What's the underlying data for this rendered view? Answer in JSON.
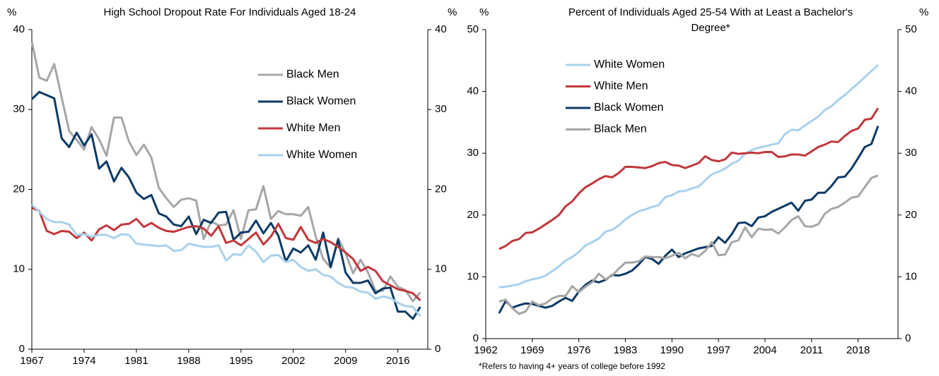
{
  "chart_data": [
    {
      "type": "line",
      "title": [
        "High School Dropout Rate For Individuals Aged 18-24"
      ],
      "y_label": "%",
      "y2_label": "%",
      "x": [
        1967,
        1968,
        1969,
        1970,
        1971,
        1972,
        1973,
        1974,
        1975,
        1976,
        1977,
        1978,
        1979,
        1980,
        1981,
        1982,
        1983,
        1984,
        1985,
        1986,
        1987,
        1988,
        1989,
        1990,
        1991,
        1992,
        1993,
        1994,
        1995,
        1996,
        1997,
        1998,
        1999,
        2000,
        2001,
        2002,
        2003,
        2004,
        2005,
        2006,
        2007,
        2008,
        2009,
        2010,
        2011,
        2012,
        2013,
        2014,
        2015,
        2016,
        2017,
        2018,
        2019
      ],
      "xlim": [
        1967,
        2020
      ],
      "xticks": [
        1967,
        1974,
        1981,
        1988,
        1995,
        2002,
        2009,
        2016
      ],
      "ylim": [
        0,
        40
      ],
      "yticks": [
        0,
        10,
        20,
        30,
        40
      ],
      "y2lim": [
        0,
        40
      ],
      "y2ticks": [
        0,
        10,
        20,
        30,
        40
      ],
      "series": [
        {
          "name": "Black Men",
          "color": "#a6a6a6",
          "values": [
            38.5,
            34,
            33.6,
            35.7,
            31.5,
            27.3,
            26.2,
            25,
            27.8,
            26.3,
            24.2,
            29,
            29,
            26,
            24.3,
            25.6,
            24,
            20.2,
            18.9,
            17.8,
            18.7,
            18.9,
            18.6,
            13.8,
            16,
            15.5,
            15.6,
            17.4,
            13.8,
            17.4,
            17.5,
            20.4,
            16.3,
            17.3,
            16.9,
            16.9,
            16.7,
            17.8,
            14.1,
            11.3,
            10.2,
            13.9,
            12,
            9.5,
            11.2,
            9.6,
            7.3,
            7.3,
            9.1,
            7.8,
            7.4,
            6,
            7.1
          ]
        },
        {
          "name": "Black Women",
          "color": "#0b3a66",
          "values": [
            31.3,
            32.2,
            31.8,
            31.4,
            26.4,
            25.3,
            27.1,
            25.5,
            26.9,
            22.6,
            23.5,
            21,
            22.7,
            21.5,
            19.6,
            18.8,
            19.3,
            17,
            16.6,
            15.6,
            15.4,
            16.6,
            14.4,
            16.2,
            15.8,
            17.1,
            17.2,
            13.7,
            14.6,
            14.7,
            16.1,
            14.5,
            15.8,
            14.2,
            11,
            12.6,
            12.1,
            13,
            11.2,
            14.6,
            10.3,
            13.7,
            9.6,
            8.3,
            8.3,
            8.6,
            7,
            7.6,
            7.7,
            4.7,
            4.7,
            3.8,
            5.3
          ]
        },
        {
          "name": "White Men",
          "color": "#c0373a",
          "values": [
            17.7,
            17.3,
            14.8,
            14.4,
            14.8,
            14.7,
            13.9,
            14.6,
            13.6,
            15,
            15.5,
            14.9,
            15.6,
            15.7,
            16.3,
            15.3,
            15.8,
            15.2,
            14.8,
            14.7,
            15,
            15.3,
            15.4,
            15.1,
            14.2,
            15.4,
            13.3,
            13.6,
            13,
            13.8,
            14.6,
            13.1,
            14.1,
            15.7,
            13.9,
            13.7,
            15.3,
            13.7,
            13.3,
            13.8,
            13.4,
            12.8,
            12.1,
            11.3,
            9.8,
            10.3,
            9.8,
            8.5,
            8,
            7.5,
            7.3,
            7,
            6.1
          ]
        },
        {
          "name": "White Women",
          "color": "#a9d1ee",
          "values": [
            18.1,
            17.2,
            16.3,
            15.9,
            15.9,
            15.6,
            14.3,
            14.4,
            14.1,
            14.3,
            14.3,
            13.9,
            14.4,
            14.3,
            13.2,
            13.1,
            13,
            12.9,
            13,
            12.3,
            12.4,
            13.2,
            13,
            12.8,
            12.8,
            13,
            11.1,
            11.9,
            11.8,
            13,
            12.2,
            10.9,
            11.7,
            11.8,
            10.9,
            11.2,
            10.3,
            9.8,
            10,
            9.3,
            9.1,
            8.3,
            7.8,
            7.7,
            7.2,
            7.1,
            6.3,
            6.6,
            6.4,
            5.8,
            5.4,
            5.3,
            4.1
          ]
        }
      ]
    },
    {
      "type": "line",
      "title": [
        "Percent of Individuals Aged 25-54 With at Least a Bachelor's",
        "Degree*"
      ],
      "y_label": "%",
      "y2_label": "%",
      "note": "*Refers to having 4+ years of college before 1992",
      "x": [
        1964,
        1965,
        1966,
        1967,
        1968,
        1969,
        1970,
        1971,
        1972,
        1973,
        1974,
        1975,
        1976,
        1977,
        1978,
        1979,
        1980,
        1981,
        1982,
        1983,
        1984,
        1985,
        1986,
        1987,
        1988,
        1989,
        1990,
        1991,
        1992,
        1993,
        1994,
        1995,
        1996,
        1997,
        1998,
        1999,
        2000,
        2001,
        2002,
        2003,
        2004,
        2005,
        2006,
        2007,
        2008,
        2009,
        2010,
        2011,
        2012,
        2013,
        2014,
        2015,
        2016,
        2017,
        2018,
        2019,
        2020,
        2021
      ],
      "xlim": [
        1962,
        2024
      ],
      "xticks": [
        1962,
        1969,
        1976,
        1983,
        1990,
        1997,
        2004,
        2011,
        2018
      ],
      "ylim": [
        0,
        50
      ],
      "yticks": [
        0,
        10,
        20,
        30,
        40,
        50
      ],
      "y2lim": [
        0,
        50
      ],
      "y2ticks": [
        0,
        10,
        20,
        30,
        40,
        50
      ],
      "series": [
        {
          "name": "White Women",
          "color": "#a9d1ee",
          "values": [
            8.3,
            8.4,
            8.6,
            8.8,
            9.3,
            9.6,
            9.8,
            10.2,
            10.9,
            11.7,
            12.6,
            13.2,
            14,
            15.1,
            15.6,
            16.2,
            17.3,
            17.6,
            18.3,
            19.3,
            20,
            20.6,
            20.9,
            21.3,
            21.6,
            22.9,
            23.2,
            23.8,
            23.9,
            24.3,
            24.6,
            25.6,
            26.6,
            27,
            27.5,
            28.3,
            28.8,
            29.9,
            30.5,
            30.9,
            31.1,
            31.4,
            31.6,
            33.1,
            33.8,
            33.7,
            34.5,
            35.2,
            35.9,
            37,
            37.6,
            38.6,
            39.4,
            40.4,
            41.3,
            42.3,
            43.3,
            44.3
          ]
        },
        {
          "name": "White Men",
          "color": "#c0373a",
          "values": [
            14.5,
            15,
            15.8,
            16.1,
            17.1,
            17.2,
            17.8,
            18.5,
            19.2,
            20,
            21.4,
            22.2,
            23.5,
            24.5,
            25.1,
            25.8,
            26.3,
            26.1,
            26.8,
            27.8,
            27.8,
            27.7,
            27.6,
            27.9,
            28.4,
            28.6,
            28.1,
            28,
            27.6,
            28,
            28.4,
            29.5,
            28.9,
            28.7,
            29,
            30.1,
            29.9,
            30,
            30.1,
            30,
            30.2,
            30.2,
            29.4,
            29.5,
            29.8,
            29.8,
            29.6,
            30.3,
            31,
            31.4,
            31.9,
            31.8,
            32.8,
            33.6,
            34,
            35.4,
            35.6,
            37.3
          ]
        },
        {
          "name": "Black Women",
          "color": "#0b3a66",
          "values": [
            4.1,
            6.1,
            5,
            5.4,
            5.7,
            5.6,
            5.3,
            5,
            5.3,
            6,
            6.6,
            6.1,
            7.6,
            8.7,
            9.4,
            9.1,
            9.5,
            10.3,
            10.2,
            10.5,
            11,
            12,
            13.2,
            12.9,
            12.1,
            13.4,
            14.4,
            13.2,
            13.8,
            14.2,
            14.6,
            14.8,
            15,
            16.4,
            15.5,
            16.9,
            18.7,
            18.8,
            18.2,
            19.6,
            19.8,
            20.5,
            21,
            21.5,
            22,
            20.7,
            22.3,
            22.5,
            23.6,
            23.6,
            24.7,
            26.1,
            26.2,
            27.5,
            29.2,
            31,
            31.5,
            34.4
          ]
        },
        {
          "name": "Black Men",
          "color": "#a6a6a6",
          "values": [
            6,
            6.3,
            4.9,
            4,
            4.4,
            6,
            5.4,
            5.7,
            6.5,
            6.9,
            6.9,
            8.5,
            7.5,
            8.4,
            9.1,
            10.5,
            9.6,
            10.2,
            11.3,
            12.3,
            12.3,
            12.5,
            13.3,
            13.2,
            13.2,
            13,
            13.4,
            13.9,
            13,
            13.7,
            13.3,
            14.2,
            15.6,
            13.5,
            13.6,
            15.6,
            15.9,
            18,
            16.4,
            17.8,
            17.6,
            17.7,
            17,
            18,
            19.2,
            19.8,
            18.2,
            18.1,
            18.5,
            20.2,
            21,
            21.3,
            22,
            22.8,
            23,
            24.5,
            26,
            26.4
          ]
        }
      ]
    }
  ]
}
